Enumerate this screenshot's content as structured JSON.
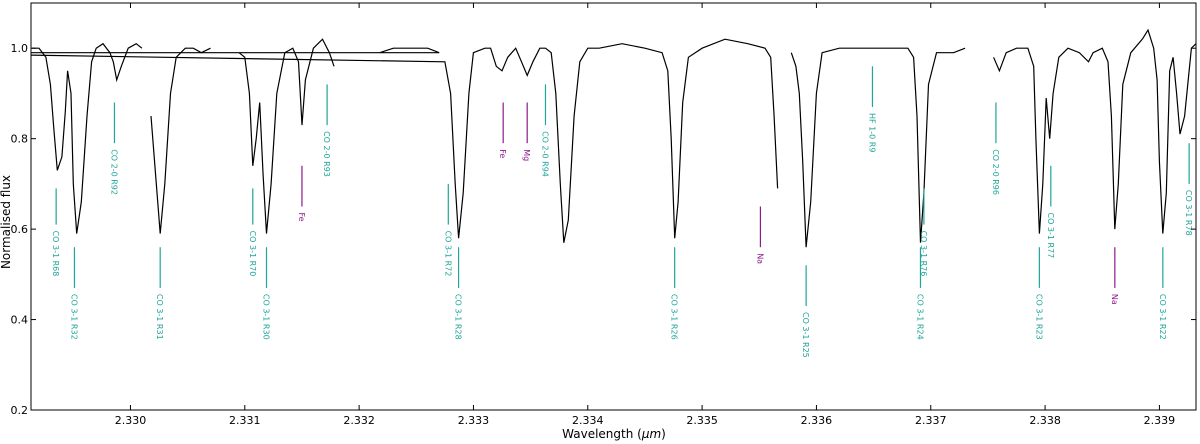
{
  "chart_data": {
    "type": "line",
    "xlabel": "Wavelength (μm)",
    "ylabel": "Normalised flux",
    "xlim": [
      2.32913,
      2.33932
    ],
    "ylim": [
      0.2,
      1.1
    ],
    "xticks": [
      2.33,
      2.331,
      2.332,
      2.333,
      2.334,
      2.335,
      2.336,
      2.337,
      2.338,
      2.339
    ],
    "xtick_labels": [
      "2.330",
      "2.331",
      "2.332",
      "2.333",
      "2.334",
      "2.335",
      "2.336",
      "2.337",
      "2.338",
      "2.339"
    ],
    "yticks": [
      0.2,
      0.4,
      0.6,
      0.8,
      1.0
    ],
    "ytick_labels": [
      "0.2",
      "0.4",
      "0.6",
      "0.8",
      "1.0"
    ],
    "grid": false,
    "colors": {
      "spectrum": "#000000",
      "co": "#1fa59a",
      "atomic": "#8b1a8b",
      "hf": "#1fa59a"
    },
    "series": [
      {
        "segment": 1,
        "points": [
          [
            2.32914,
            1.0
          ],
          [
            2.3292,
            1.0
          ],
          [
            2.32926,
            0.98
          ],
          [
            2.3293,
            0.92
          ],
          [
            2.32933,
            0.82
          ],
          [
            2.32936,
            0.73
          ],
          [
            2.3294,
            0.76
          ],
          [
            2.32943,
            0.86
          ],
          [
            2.32945,
            0.95
          ],
          [
            2.32948,
            0.9
          ],
          [
            2.3295,
            0.7
          ],
          [
            2.32953,
            0.59
          ],
          [
            2.32957,
            0.66
          ],
          [
            2.32962,
            0.85
          ],
          [
            2.32966,
            0.97
          ],
          [
            2.3297,
            1.0
          ],
          [
            2.32976,
            1.01
          ],
          [
            2.32982,
            0.99
          ],
          [
            2.32985,
            0.97
          ],
          [
            2.32988,
            0.93
          ],
          [
            2.32992,
            0.96
          ],
          [
            2.32998,
            1.0
          ],
          [
            2.33005,
            1.01
          ],
          [
            2.3301,
            1.0
          ]
        ]
      },
      {
        "segment": 2,
        "points": [
          [
            2.33018,
            0.85
          ],
          [
            2.33022,
            0.72
          ],
          [
            2.33026,
            0.59
          ],
          [
            2.3303,
            0.7
          ],
          [
            2.33035,
            0.9
          ],
          [
            2.3304,
            0.98
          ],
          [
            2.33048,
            1.0
          ],
          [
            2.33055,
            1.0
          ],
          [
            2.33062,
            0.99
          ],
          [
            2.3307,
            1.0
          ]
        ]
      },
      {
        "segment": 3,
        "points": [
          [
            2.33095,
            0.99
          ],
          [
            2.331,
            0.98
          ],
          [
            2.33104,
            0.9
          ],
          [
            2.33107,
            0.74
          ],
          [
            2.3311,
            0.8
          ],
          [
            2.33113,
            0.88
          ],
          [
            2.33116,
            0.72
          ],
          [
            2.33119,
            0.59
          ],
          [
            2.33123,
            0.7
          ],
          [
            2.33128,
            0.9
          ],
          [
            2.33135,
            0.99
          ],
          [
            2.33142,
            1.0
          ],
          [
            2.33147,
            0.97
          ],
          [
            2.3315,
            0.83
          ],
          [
            2.33153,
            0.93
          ],
          [
            2.3316,
            1.0
          ],
          [
            2.33168,
            1.02
          ],
          [
            2.33174,
            0.99
          ],
          [
            2.33178,
            0.96
          ]
        ]
      },
      {
        "segment": 4,
        "points": [
          [
            2.33218,
            0.99
          ],
          [
            2.3323,
            1.0
          ],
          [
            2.33245,
            1.0
          ],
          [
            2.3326,
            1.0
          ],
          [
            2.3327,
            0.99
          ],
          [
            2.3278,
            0.99
          ],
          [
            2.33275,
            0.97
          ],
          [
            2.3328,
            0.9
          ],
          [
            2.33284,
            0.7
          ],
          [
            2.33287,
            0.58
          ],
          [
            2.33291,
            0.68
          ],
          [
            2.33296,
            0.9
          ],
          [
            2.333,
            0.99
          ],
          [
            2.3331,
            1.0
          ],
          [
            2.33315,
            1.0
          ],
          [
            2.3332,
            0.96
          ],
          [
            2.33325,
            0.95
          ],
          [
            2.3333,
            0.98
          ],
          [
            2.33337,
            1.0
          ],
          [
            2.33342,
            0.97
          ],
          [
            2.33347,
            0.94
          ],
          [
            2.33352,
            0.97
          ],
          [
            2.33358,
            1.0
          ],
          [
            2.33363,
            1.0
          ],
          [
            2.33368,
            0.99
          ],
          [
            2.33372,
            0.9
          ],
          [
            2.33376,
            0.7
          ],
          [
            2.33379,
            0.57
          ],
          [
            2.33383,
            0.62
          ],
          [
            2.33388,
            0.85
          ],
          [
            2.33393,
            0.97
          ],
          [
            2.334,
            1.0
          ],
          [
            2.3341,
            1.0
          ],
          [
            2.3343,
            1.01
          ],
          [
            2.3345,
            1.0
          ],
          [
            2.33465,
            0.99
          ],
          [
            2.3347,
            0.95
          ],
          [
            2.33473,
            0.8
          ],
          [
            2.33476,
            0.58
          ],
          [
            2.33479,
            0.66
          ],
          [
            2.33483,
            0.88
          ],
          [
            2.33488,
            0.98
          ],
          [
            2.335,
            1.0
          ],
          [
            2.3352,
            1.02
          ],
          [
            2.3354,
            1.01
          ],
          [
            2.33555,
            1.0
          ],
          [
            2.3356,
            0.98
          ],
          [
            2.33563,
            0.85
          ],
          [
            2.33566,
            0.69
          ]
        ]
      },
      {
        "segment": 5,
        "points": [
          [
            2.33578,
            0.99
          ],
          [
            2.33582,
            0.96
          ],
          [
            2.33585,
            0.9
          ],
          [
            2.33588,
            0.75
          ],
          [
            2.33591,
            0.56
          ],
          [
            2.33595,
            0.66
          ],
          [
            2.336,
            0.9
          ],
          [
            2.33605,
            0.99
          ],
          [
            2.3362,
            1.0
          ],
          [
            2.3364,
            1.0
          ],
          [
            2.3366,
            1.0
          ],
          [
            2.3368,
            1.0
          ],
          [
            2.33685,
            0.98
          ],
          [
            2.33688,
            0.85
          ],
          [
            2.33691,
            0.57
          ],
          [
            2.33694,
            0.68
          ],
          [
            2.33698,
            0.92
          ],
          [
            2.33705,
            0.99
          ],
          [
            2.3372,
            0.99
          ],
          [
            2.3373,
            1.0
          ]
        ]
      },
      {
        "segment": 6,
        "points": [
          [
            2.33755,
            0.98
          ],
          [
            2.3376,
            0.95
          ],
          [
            2.33766,
            0.99
          ],
          [
            2.33775,
            1.0
          ],
          [
            2.33785,
            1.0
          ],
          [
            2.3379,
            0.96
          ],
          [
            2.33792,
            0.8
          ],
          [
            2.33795,
            0.59
          ],
          [
            2.33798,
            0.7
          ],
          [
            2.33801,
            0.89
          ],
          [
            2.33804,
            0.8
          ],
          [
            2.33807,
            0.9
          ],
          [
            2.33812,
            0.98
          ],
          [
            2.3382,
            1.0
          ],
          [
            2.3383,
            0.99
          ],
          [
            2.33838,
            0.97
          ],
          [
            2.33842,
            0.99
          ],
          [
            2.3385,
            1.0
          ],
          [
            2.33855,
            0.97
          ],
          [
            2.33858,
            0.85
          ],
          [
            2.33861,
            0.6
          ],
          [
            2.33864,
            0.7
          ],
          [
            2.33868,
            0.92
          ],
          [
            2.33875,
            0.99
          ],
          [
            2.33885,
            1.02
          ],
          [
            2.3389,
            1.04
          ],
          [
            2.33895,
            1.0
          ],
          [
            2.33898,
            0.93
          ],
          [
            2.339,
            0.75
          ],
          [
            2.33903,
            0.59
          ],
          [
            2.33906,
            0.68
          ],
          [
            2.33909,
            0.95
          ],
          [
            2.33912,
            0.98
          ],
          [
            2.33915,
            0.9
          ],
          [
            2.33918,
            0.81
          ],
          [
            2.33922,
            0.85
          ],
          [
            2.33928,
            1.0
          ],
          [
            2.33932,
            1.01
          ]
        ]
      }
    ],
    "line_markers": [
      {
        "label": "CO 3-1 R68",
        "x": 2.32935,
        "y1": 0.69,
        "y2": 0.61,
        "kind": "co"
      },
      {
        "label": "CO 3-1 R32",
        "x": 2.32951,
        "y1": 0.56,
        "y2": 0.47,
        "kind": "co"
      },
      {
        "label": "CO 2-0 R92",
        "x": 2.32986,
        "y1": 0.88,
        "y2": 0.79,
        "kind": "co"
      },
      {
        "label": "CO 3-1 R31",
        "x": 2.33026,
        "y1": 0.56,
        "y2": 0.47,
        "kind": "co"
      },
      {
        "label": "CO 3-1 R70",
        "x": 2.33107,
        "y1": 0.69,
        "y2": 0.61,
        "kind": "co"
      },
      {
        "label": "CO 3-1 R30",
        "x": 2.33119,
        "y1": 0.56,
        "y2": 0.47,
        "kind": "co"
      },
      {
        "label": "Fe",
        "x": 2.3315,
        "y1": 0.74,
        "y2": 0.65,
        "kind": "atomic"
      },
      {
        "label": "CO 2-0 R93",
        "x": 2.33172,
        "y1": 0.92,
        "y2": 0.83,
        "kind": "co"
      },
      {
        "label": "CO 3-1 R72",
        "x": 2.33278,
        "y1": 0.7,
        "y2": 0.61,
        "kind": "co"
      },
      {
        "label": "CO 3-1 R28",
        "x": 2.33287,
        "y1": 0.56,
        "y2": 0.47,
        "kind": "co"
      },
      {
        "label": "Fe",
        "x": 2.33326,
        "y1": 0.88,
        "y2": 0.79,
        "kind": "atomic"
      },
      {
        "label": "Mg",
        "x": 2.33347,
        "y1": 0.88,
        "y2": 0.79,
        "kind": "atomic"
      },
      {
        "label": "CO 2-0 R94",
        "x": 2.33363,
        "y1": 0.92,
        "y2": 0.83,
        "kind": "co"
      },
      {
        "label": "CO 3-1 R26",
        "x": 2.33476,
        "y1": 0.56,
        "y2": 0.47,
        "kind": "co"
      },
      {
        "label": "Na",
        "x": 2.33551,
        "y1": 0.65,
        "y2": 0.56,
        "kind": "atomic"
      },
      {
        "label": "CO 3-1 R25",
        "x": 2.33591,
        "y1": 0.52,
        "y2": 0.43,
        "kind": "co"
      },
      {
        "label": "HF 1-0 R9",
        "x": 2.33649,
        "y1": 0.96,
        "y2": 0.87,
        "kind": "hf"
      },
      {
        "label": "CO 3-1 R24",
        "x": 2.33691,
        "y1": 0.56,
        "y2": 0.47,
        "kind": "co"
      },
      {
        "label": "CO 3-1 R76",
        "x": 2.33694,
        "y1": 0.69,
        "y2": 0.61,
        "kind": "co"
      },
      {
        "label": "CO 2-0 R96",
        "x": 2.33757,
        "y1": 0.88,
        "y2": 0.79,
        "kind": "co"
      },
      {
        "label": "CO 3-1 R23",
        "x": 2.33795,
        "y1": 0.56,
        "y2": 0.47,
        "kind": "co"
      },
      {
        "label": "CO 3-1 R77",
        "x": 2.33805,
        "y1": 0.74,
        "y2": 0.65,
        "kind": "co"
      },
      {
        "label": "Na",
        "x": 2.33861,
        "y1": 0.56,
        "y2": 0.47,
        "kind": "atomic"
      },
      {
        "label": "CO 3-1 R22",
        "x": 2.33903,
        "y1": 0.56,
        "y2": 0.47,
        "kind": "co"
      },
      {
        "label": "CO 3-1 R78",
        "x": 2.33926,
        "y1": 0.79,
        "y2": 0.7,
        "kind": "co"
      }
    ]
  }
}
